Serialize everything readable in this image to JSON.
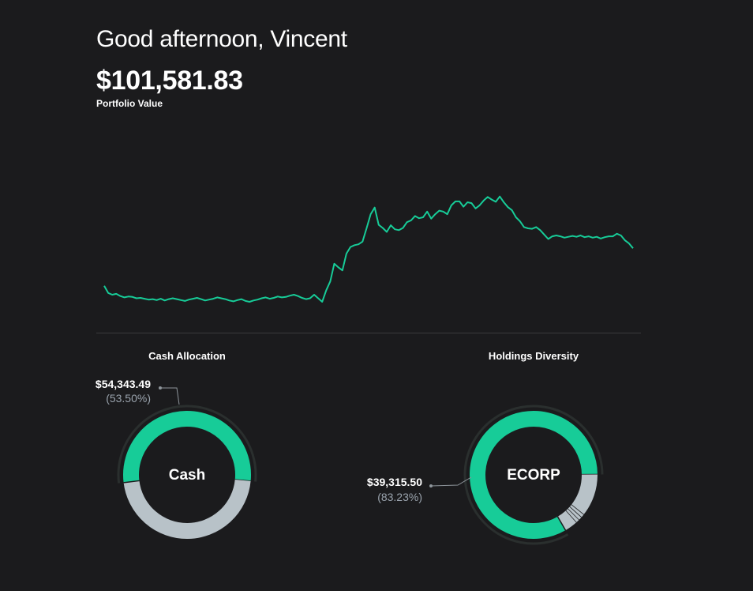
{
  "header": {
    "greeting": "Good afternoon, Vincent",
    "portfolio_value": "$101,581.83",
    "portfolio_label": "Portfolio Value"
  },
  "colors": {
    "background": "#1b1b1d",
    "accent": "#17cc98",
    "secondary": "#b8c2c8",
    "muted_text": "#9aa3ad"
  },
  "chart_data": [
    {
      "type": "line",
      "title": "",
      "xlabel": "",
      "ylabel": "",
      "grid": false,
      "series": [
        {
          "values": [
            100,
            84,
            80,
            82,
            77,
            74,
            76,
            75,
            72,
            73,
            71,
            69,
            70,
            68,
            71,
            67,
            70,
            72,
            70,
            68,
            66,
            69,
            71,
            73,
            70,
            67,
            69,
            71,
            74,
            72,
            70,
            67,
            65,
            68,
            70,
            66,
            64,
            67,
            69,
            72,
            74,
            71,
            73,
            76,
            74,
            75,
            78,
            80,
            77,
            73,
            70,
            72,
            80,
            72,
            64,
            90,
            110,
            150,
            142,
            135,
            173,
            188,
            192,
            194,
            200,
            230,
            262,
            277,
            238,
            231,
            222,
            237,
            228,
            226,
            231,
            244,
            248,
            258,
            253,
            255,
            268,
            252,
            262,
            270,
            268,
            262,
            282,
            291,
            291,
            279,
            289,
            287,
            275,
            282,
            293,
            301,
            295,
            290,
            302,
            289,
            278,
            271,
            255,
            246,
            233,
            230,
            229,
            233,
            226,
            216,
            206,
            212,
            214,
            212,
            209,
            211,
            213,
            211,
            214,
            210,
            212,
            209,
            211,
            207,
            210,
            212,
            212,
            218,
            214,
            203,
            196,
            185
          ]
        }
      ]
    },
    {
      "type": "pie",
      "title": "Cash Allocation",
      "center_label": "Cash",
      "slices": [
        {
          "label": "Cash",
          "value": 54343.49,
          "percent": 53.5,
          "color": "#17cc98"
        },
        {
          "label": "",
          "value": 47238.34,
          "percent": 46.5,
          "color": "#b8c2c8"
        }
      ],
      "callout": {
        "value": "$54,343.49",
        "percent": "(53.50%)"
      }
    },
    {
      "type": "pie",
      "title": "Holdings Diversity",
      "center_label": "ECORP",
      "slices": [
        {
          "label": "ECORP",
          "value": 39315.5,
          "percent": 83.23,
          "color": "#17cc98"
        },
        {
          "label": "",
          "percent": 10.8,
          "color": "#b8c2c8"
        },
        {
          "label": "",
          "percent": 0.9,
          "color": "#b8c2c8"
        },
        {
          "label": "",
          "percent": 0.9,
          "color": "#b8c2c8"
        },
        {
          "label": "",
          "percent": 0.9,
          "color": "#b8c2c8"
        },
        {
          "label": "",
          "percent": 3.27,
          "color": "#b8c2c8"
        }
      ],
      "callout": {
        "value": "$39,315.50",
        "percent": "(83.23%)"
      }
    }
  ]
}
